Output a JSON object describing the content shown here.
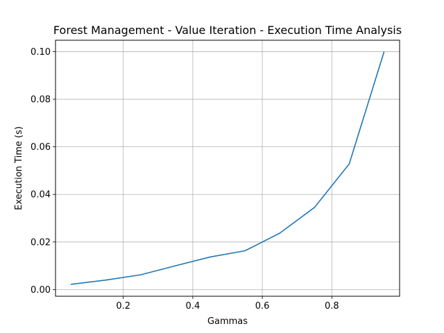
{
  "chart_data": {
    "type": "line",
    "title": "Forest Management - Value Iteration - Execution Time Analysis",
    "xlabel": "Gammas",
    "ylabel": "Execution Time (s)",
    "xlim": [
      0.005,
      0.995
    ],
    "ylim": [
      -0.0028,
      0.1048
    ],
    "grid": true,
    "xticks": [
      0.2,
      0.4,
      0.6,
      0.8
    ],
    "xtick_labels": [
      "0.2",
      "0.4",
      "0.6",
      "0.8"
    ],
    "yticks": [
      0.0,
      0.02,
      0.04,
      0.06,
      0.08,
      0.1
    ],
    "ytick_labels": [
      "0.00",
      "0.02",
      "0.04",
      "0.06",
      "0.08",
      "0.10"
    ],
    "series": [
      {
        "color": "#1f77b4",
        "x": [
          0.05,
          0.15,
          0.25,
          0.35,
          0.45,
          0.55,
          0.65,
          0.75,
          0.85,
          0.95
        ],
        "y": [
          0.0022,
          0.004,
          0.0062,
          0.01,
          0.0137,
          0.0163,
          0.0237,
          0.0345,
          0.0528,
          0.0998
        ]
      }
    ]
  }
}
